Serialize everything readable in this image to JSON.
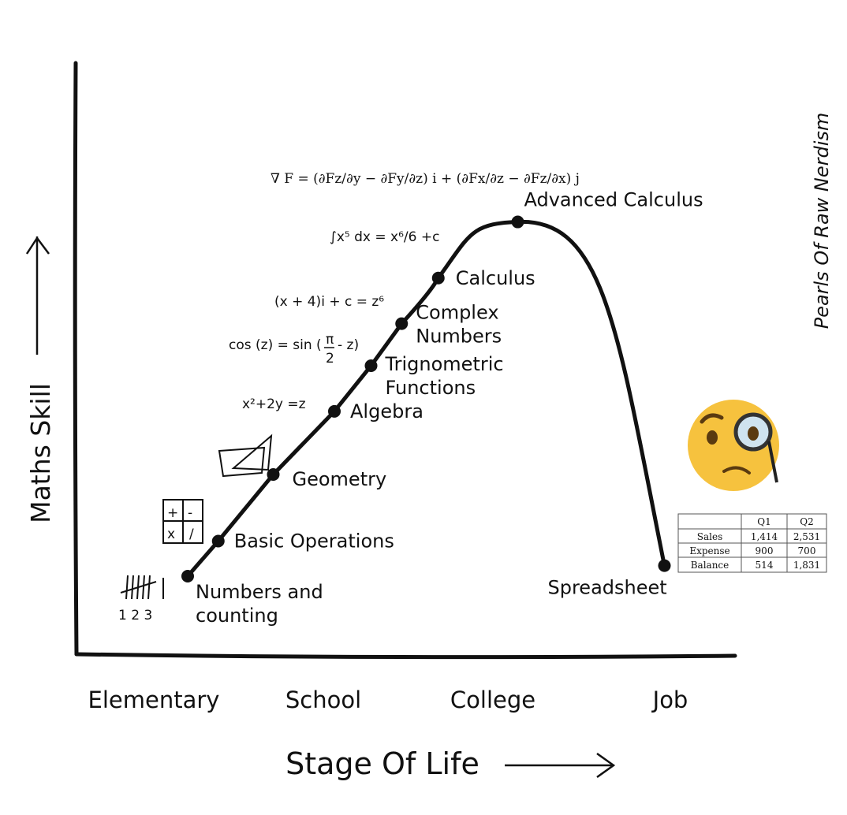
{
  "watermark": "Pearls Of Raw Nerdism",
  "chart_data": {
    "type": "line",
    "xlabel": "Stage Of Life",
    "ylabel": "Maths Skill",
    "categories": [
      "Elementary",
      "School",
      "College",
      "Job"
    ],
    "series": [
      {
        "points": [
          {
            "stage": 0.0,
            "skill": 1.0,
            "label": "Numbers and counting"
          },
          {
            "stage": 0.25,
            "skill": 2.0,
            "label": "Basic Operations"
          },
          {
            "stage": 0.7,
            "skill": 3.9,
            "label": "Geometry"
          },
          {
            "stage": 1.2,
            "skill": 5.7,
            "label": "Algebra"
          },
          {
            "stage": 1.5,
            "skill": 7.0,
            "label": "Trignometric Functions"
          },
          {
            "stage": 1.75,
            "skill": 8.2,
            "label": "Complex Numbers"
          },
          {
            "stage": 2.05,
            "skill": 9.5,
            "label": "Calculus"
          },
          {
            "stage": 2.7,
            "skill": 11.1,
            "label": "Advanced Calculus"
          },
          {
            "stage": 3.9,
            "skill": 1.3,
            "label": "Spreadsheet"
          }
        ]
      }
    ]
  },
  "formulas": {
    "counting": "1 2 3",
    "basic_ops": [
      "+",
      "-",
      "x",
      "/"
    ],
    "algebra": "x²+2y =z",
    "trig_left": "cos (z) = sin (",
    "trig_frac_num": "π",
    "trig_frac_den": "2",
    "trig_right": "- z)",
    "complex": "(x + 4)i + c = z⁶",
    "calculus": "∫x⁵ dx = x⁶/6 +c",
    "advanced": "∇ F = (∂Fz/∂y − ∂Fy/∂z) i + (∂Fx/∂z − ∂Fz/∂x) j"
  },
  "spreadsheet_table": {
    "headers": [
      "",
      "Q1",
      "Q2"
    ],
    "rows": [
      [
        "Sales",
        "1,414",
        "2,531"
      ],
      [
        "Expense",
        "900",
        "700"
      ],
      [
        "Balance",
        "514",
        "1,831"
      ]
    ]
  }
}
